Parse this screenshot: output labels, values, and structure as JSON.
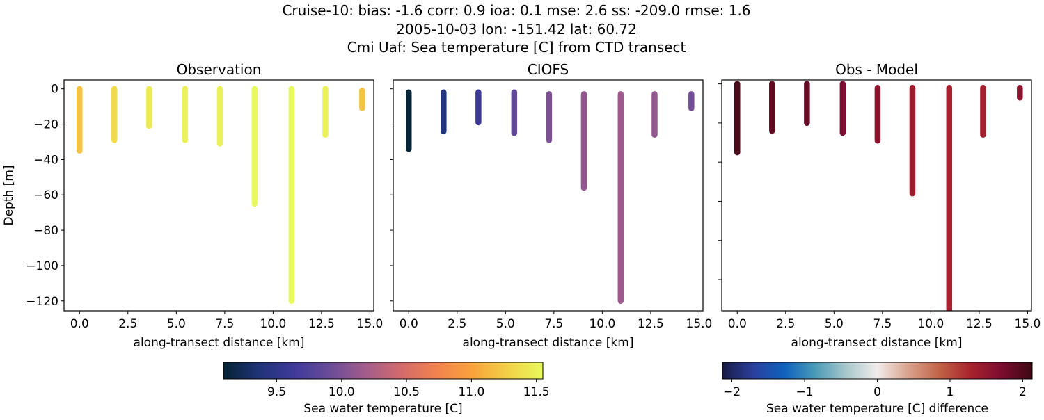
{
  "suptitle": [
    "Cruise-10: bias: -1.6  corr: 0.9  ioa: 0.1  mse: 2.6  ss: -209.0  rmse: 1.6",
    "2005-10-03 lon: -151.42 lat: 60.72",
    "Cmi Uaf: Sea temperature [C] from CTD transect"
  ],
  "chart_data": [
    {
      "type": "scatter",
      "title": "Observation",
      "xlabel": "along-transect distance [km]",
      "ylabel": "Depth [m]",
      "xlim": [
        -0.8,
        15.2
      ],
      "ylim": [
        -125.6,
        5
      ],
      "xticks": [
        "0.0",
        "2.5",
        "5.0",
        "7.5",
        "10.0",
        "12.5",
        "15.0"
      ],
      "yticks": [
        "0",
        "−20",
        "−40",
        "−60",
        "−80",
        "−100",
        "−120"
      ],
      "color_variable": "Sea water temperature [C]",
      "casts": [
        {
          "x": 0.0,
          "top": 0,
          "bottom": -35,
          "value": 11.2
        },
        {
          "x": 1.8,
          "top": 0,
          "bottom": -29,
          "value": 11.35
        },
        {
          "x": 3.6,
          "top": 0,
          "bottom": -21,
          "value": 11.45
        },
        {
          "x": 5.45,
          "top": 0,
          "bottom": -29,
          "value": 11.5
        },
        {
          "x": 7.25,
          "top": 0,
          "bottom": -31,
          "value": 11.5
        },
        {
          "x": 9.05,
          "top": 0,
          "bottom": -65,
          "value": 11.55
        },
        {
          "x": 10.95,
          "top": 0,
          "bottom": -120,
          "value": 11.55
        },
        {
          "x": 12.7,
          "top": 0,
          "bottom": -26,
          "value": 11.5
        },
        {
          "x": 14.6,
          "top": -1,
          "bottom": -11,
          "value": 11.2
        }
      ]
    },
    {
      "type": "scatter",
      "title": "CIOFS",
      "xlabel": "along-transect distance [km]",
      "xlim": [
        -0.8,
        15.2
      ],
      "ylim": [
        -125.6,
        5
      ],
      "xticks": [
        "0.0",
        "2.5",
        "5.0",
        "7.5",
        "10.0",
        "12.5",
        "15.0"
      ],
      "casts": [
        {
          "x": 0.0,
          "top": -2,
          "bottom": -34,
          "value": 9.1
        },
        {
          "x": 1.8,
          "top": -2,
          "bottom": -24,
          "value": 9.4
        },
        {
          "x": 3.6,
          "top": -2,
          "bottom": -19,
          "value": 9.6
        },
        {
          "x": 5.45,
          "top": -2,
          "bottom": -25,
          "value": 9.85
        },
        {
          "x": 7.25,
          "top": -3,
          "bottom": -29,
          "value": 10.0
        },
        {
          "x": 9.05,
          "top": -3,
          "bottom": -56,
          "value": 10.1
        },
        {
          "x": 10.95,
          "top": -3,
          "bottom": -120,
          "value": 10.15
        },
        {
          "x": 12.7,
          "top": -3,
          "bottom": -26,
          "value": 10.1
        },
        {
          "x": 14.6,
          "top": -3,
          "bottom": -11,
          "value": 9.95
        }
      ]
    },
    {
      "type": "scatter",
      "title": "Obs - Model",
      "xlabel": "along-transect distance [km]",
      "xlim": [
        -0.8,
        15.2
      ],
      "ylim": [
        -116,
        2
      ],
      "xticks": [
        "0.0",
        "2.5",
        "5.0",
        "7.5",
        "10.0",
        "12.5",
        "15.0"
      ],
      "color_variable": "Sea water temperature [C] difference",
      "casts": [
        {
          "x": 0.0,
          "top": 0,
          "bottom": -35,
          "value": 2.05
        },
        {
          "x": 1.8,
          "top": 0,
          "bottom": -24,
          "value": 1.9
        },
        {
          "x": 3.6,
          "top": 0,
          "bottom": -20,
          "value": 1.85
        },
        {
          "x": 5.45,
          "top": 0,
          "bottom": -25,
          "value": 1.7
        },
        {
          "x": 7.25,
          "top": -2,
          "bottom": -29,
          "value": 1.55
        },
        {
          "x": 9.05,
          "top": -2,
          "bottom": -56,
          "value": 1.4
        },
        {
          "x": 10.95,
          "top": -2,
          "bottom": -120,
          "value": 1.3
        },
        {
          "x": 12.7,
          "top": -2,
          "bottom": -26,
          "value": 1.35
        },
        {
          "x": 14.6,
          "top": -2,
          "bottom": -7,
          "value": 1.55
        }
      ]
    }
  ],
  "colorbars": [
    {
      "label": "Sea water temperature [C]",
      "range": [
        9.09,
        11.55
      ],
      "ticks": [
        "9.5",
        "10.0",
        "10.5",
        "11.0",
        "11.5"
      ],
      "tick_values": [
        9.5,
        10.0,
        10.5,
        11.0,
        11.5
      ],
      "colors": [
        "#042333",
        "#1f3377",
        "#3f3a9a",
        "#6a4c98",
        "#a35c8b",
        "#d26a6c",
        "#f2824e",
        "#f9a23c",
        "#f2d046",
        "#e8fa5b"
      ]
    },
    {
      "label": "Sea water temperature [C] difference",
      "range": [
        -2.13,
        2.13
      ],
      "ticks": [
        "−2",
        "−1",
        "0",
        "1",
        "2"
      ],
      "tick_values": [
        -2,
        -1,
        0,
        1,
        2
      ],
      "colors": [
        "#181c43",
        "#2a3f9e",
        "#0f62bd",
        "#4a9bb8",
        "#a9c8cc",
        "#f1eceb",
        "#d9a28d",
        "#c26347",
        "#a9232e",
        "#7d0c30",
        "#3c0912"
      ]
    }
  ]
}
